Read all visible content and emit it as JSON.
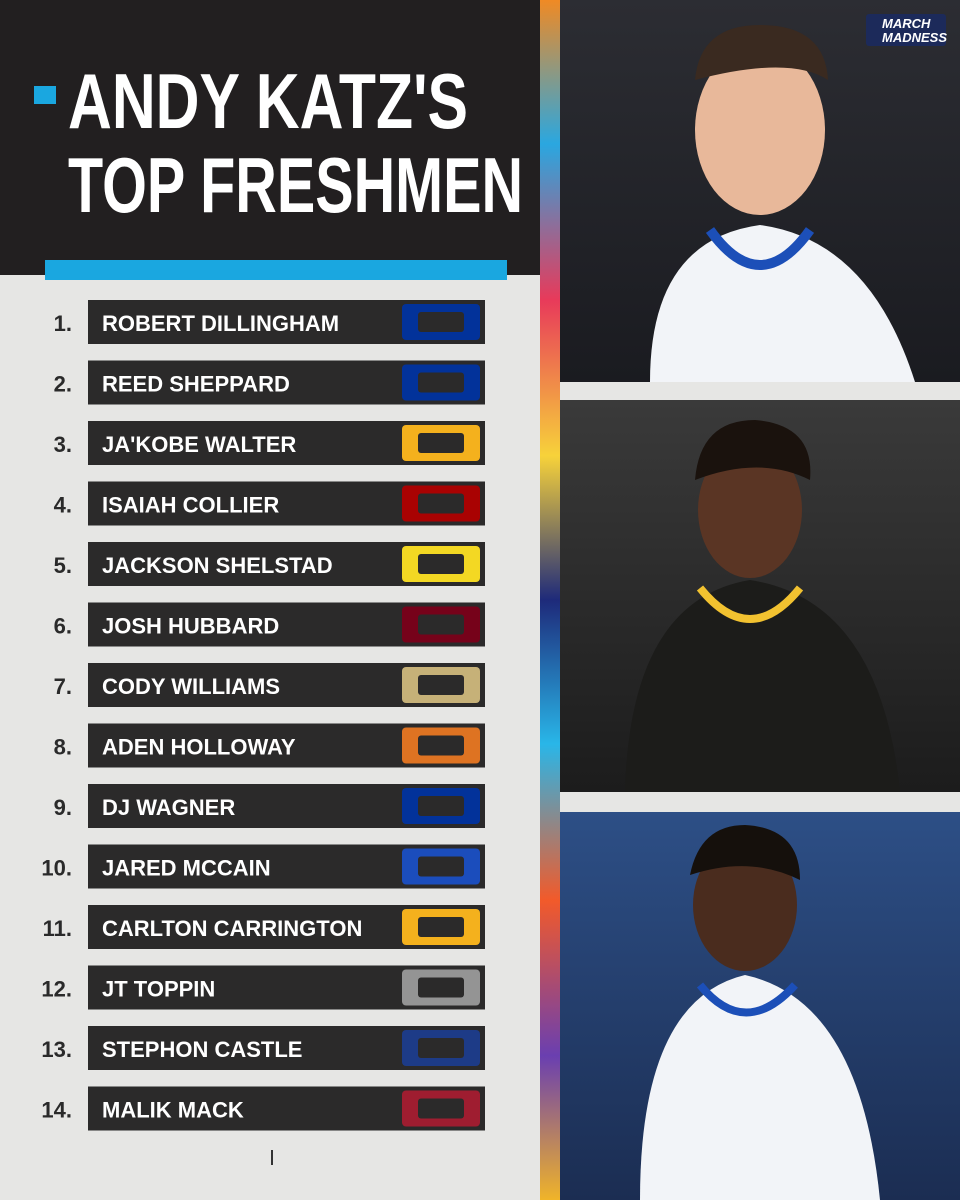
{
  "header": {
    "title_line1": "ANDY KATZ'S",
    "title_line2": "TOP FRESHMEN",
    "brand_line1": "MARCH",
    "brand_line2": "MADNESS"
  },
  "list": [
    {
      "rank": "1.",
      "name": "ROBERT DILLINGHAM",
      "logo_color": "#0033a0"
    },
    {
      "rank": "2.",
      "name": "REED SHEPPARD",
      "logo_color": "#0033a0"
    },
    {
      "rank": "3.",
      "name": "JA'KOBE WALTER",
      "logo_color": "#ffb81c"
    },
    {
      "rank": "4.",
      "name": "ISAIAH COLLIER",
      "logo_color": "#b00000"
    },
    {
      "rank": "5.",
      "name": "JACKSON SHELSTAD",
      "logo_color": "#fee123"
    },
    {
      "rank": "6.",
      "name": "JOSH HUBBARD",
      "logo_color": "#7a0019"
    },
    {
      "rank": "7.",
      "name": "CODY WILLIAMS",
      "logo_color": "#cfb87c"
    },
    {
      "rank": "8.",
      "name": "ADEN HOLLOWAY",
      "logo_color": "#e87722"
    },
    {
      "rank": "9.",
      "name": "DJ WAGNER",
      "logo_color": "#0033a0"
    },
    {
      "rank": "10.",
      "name": "JARED MCCAIN",
      "logo_color": "#1a4fc4"
    },
    {
      "rank": "11.",
      "name": "CARLTON CARRINGTON",
      "logo_color": "#ffb81c"
    },
    {
      "rank": "12.",
      "name": "JT TOPPIN",
      "logo_color": "#9a9a9a"
    },
    {
      "rank": "13.",
      "name": "STEPHON CASTLE",
      "logo_color": "#1c3c8c"
    },
    {
      "rank": "14.",
      "name": "MALIK MACK",
      "logo_color": "#a51c30"
    }
  ]
}
